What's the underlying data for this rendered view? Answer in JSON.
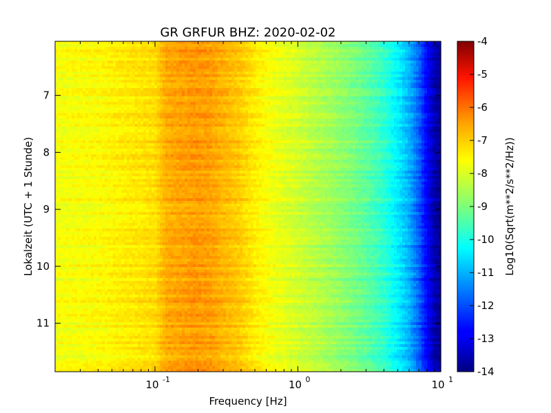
{
  "chart_data": {
    "type": "heatmap",
    "title": "GR GRFUR BHZ: 2020-02-02",
    "xlabel": "Frequency [Hz]",
    "ylabel": "Lokalzeit (UTC + 1 Stunde)",
    "x_scale": "log",
    "xlim": [
      0.02,
      10
    ],
    "x_ticks": [
      {
        "value": 0.1,
        "base": "10",
        "exp": "-1"
      },
      {
        "value": 1,
        "base": "10",
        "exp": "0"
      },
      {
        "value": 10,
        "base": "10",
        "exp": "1"
      }
    ],
    "ylim": [
      6.05,
      11.85
    ],
    "y_inverted": true,
    "y_ticks": [
      "7",
      "8",
      "9",
      "10",
      "11"
    ],
    "colorbar": {
      "label": "Log10(Sqrt(m**2/s**2/Hz))",
      "range": [
        -14,
        -4
      ],
      "ticks": [
        "-4",
        "-5",
        "-6",
        "-7",
        "-8",
        "-9",
        "-10",
        "-11",
        "-12",
        "-13",
        "-14"
      ],
      "colormap": "jet"
    },
    "spectrum_profile": [
      {
        "freq": 0.02,
        "level": -7.7
      },
      {
        "freq": 0.04,
        "level": -7.6
      },
      {
        "freq": 0.06,
        "level": -7.4
      },
      {
        "freq": 0.08,
        "level": -7.3
      },
      {
        "freq": 0.1,
        "level": -7.2
      },
      {
        "freq": 0.12,
        "level": -6.6
      },
      {
        "freq": 0.15,
        "level": -6.5
      },
      {
        "freq": 0.2,
        "level": -6.4
      },
      {
        "freq": 0.25,
        "level": -6.5
      },
      {
        "freq": 0.3,
        "level": -6.7
      },
      {
        "freq": 0.4,
        "level": -7.0
      },
      {
        "freq": 0.5,
        "level": -7.4
      },
      {
        "freq": 0.7,
        "level": -7.8
      },
      {
        "freq": 1.0,
        "level": -8.1
      },
      {
        "freq": 1.5,
        "level": -8.5
      },
      {
        "freq": 2.0,
        "level": -8.8
      },
      {
        "freq": 3.0,
        "level": -9.3
      },
      {
        "freq": 4.0,
        "level": -9.8
      },
      {
        "freq": 5.0,
        "level": -10.4
      },
      {
        "freq": 6.0,
        "level": -11.0
      },
      {
        "freq": 7.0,
        "level": -11.8
      },
      {
        "freq": 8.0,
        "level": -12.8
      },
      {
        "freq": 9.0,
        "level": -13.6
      },
      {
        "freq": 10.0,
        "level": -13.8
      }
    ]
  }
}
